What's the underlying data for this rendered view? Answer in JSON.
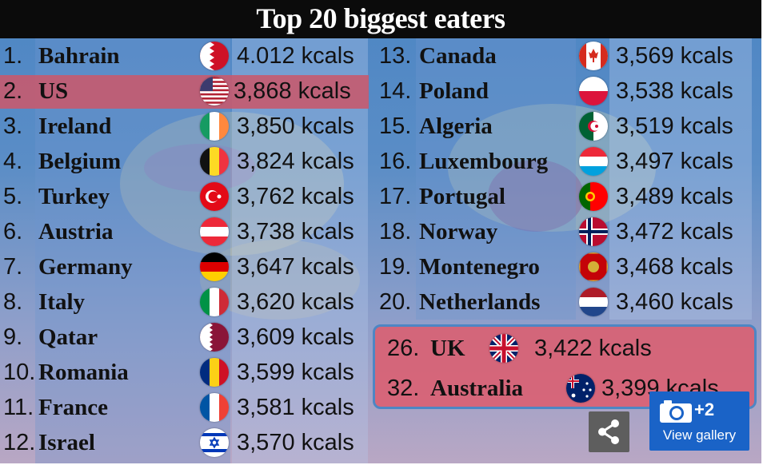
{
  "title": "Top 20 biggest eaters",
  "left_column": [
    {
      "rank": "1.",
      "country": "Bahrain",
      "flag": "bahrain-flag",
      "value": "4.012 kcals"
    },
    {
      "rank": "2.",
      "country": "US",
      "flag": "us-flag",
      "value": "3,868 kcals"
    },
    {
      "rank": "3.",
      "country": "Ireland",
      "flag": "ireland-flag",
      "value": "3,850 kcals"
    },
    {
      "rank": "4.",
      "country": "Belgium",
      "flag": "belgium-flag",
      "value": "3,824 kcals"
    },
    {
      "rank": "5.",
      "country": "Turkey",
      "flag": "turkey-flag",
      "value": "3,762 kcals"
    },
    {
      "rank": "6.",
      "country": "Austria",
      "flag": "austria-flag",
      "value": "3,738 kcals"
    },
    {
      "rank": "7.",
      "country": "Germany",
      "flag": "germany-flag",
      "value": "3,647 kcals"
    },
    {
      "rank": "8.",
      "country": "Italy",
      "flag": "italy-flag",
      "value": "3,620 kcals"
    },
    {
      "rank": "9.",
      "country": "Qatar",
      "flag": "qatar-flag",
      "value": "3,609 kcals"
    },
    {
      "rank": "10.",
      "country": "Romania",
      "flag": "romania-flag",
      "value": "3,599 kcals"
    },
    {
      "rank": "11.",
      "country": "France",
      "flag": "france-flag",
      "value": "3,581 kcals"
    },
    {
      "rank": "12.",
      "country": "Israel",
      "flag": "israel-flag",
      "value": "3,570 kcals"
    }
  ],
  "right_column": [
    {
      "rank": "13.",
      "country": "Canada",
      "flag": "canada-flag",
      "value": "3,569 kcals"
    },
    {
      "rank": "14.",
      "country": "Poland",
      "flag": "poland-flag",
      "value": "3,538 kcals"
    },
    {
      "rank": "15.",
      "country": "Algeria",
      "flag": "algeria-flag",
      "value": "3,519 kcals"
    },
    {
      "rank": "16.",
      "country": "Luxembourg",
      "flag": "luxembourg-flag",
      "value": "3,497 kcals"
    },
    {
      "rank": "17.",
      "country": "Portugal",
      "flag": "portugal-flag",
      "value": "3,489 kcals"
    },
    {
      "rank": "18.",
      "country": "Norway",
      "flag": "norway-flag",
      "value": "3,472 kcals"
    },
    {
      "rank": "19.",
      "country": "Montenegro",
      "flag": "montenegro-flag",
      "value": "3,468 kcals"
    },
    {
      "rank": "20.",
      "country": "Netherlands",
      "flag": "netherlands-flag",
      "value": "3,460 kcals"
    }
  ],
  "highlight_box": [
    {
      "rank": "26.",
      "country": "UK",
      "flag": "uk-flag",
      "value": "3,422 kcals"
    },
    {
      "rank": "32.",
      "country": "Australia",
      "flag": "australia-flag",
      "value": "3,399 kcals"
    }
  ],
  "controls": {
    "share_icon": "share-icon",
    "gallery_icon": "camera-icon",
    "gallery_count": "+2",
    "gallery_label": "View gallery"
  },
  "colors": {
    "title_bar": "#0b0b0b",
    "us_highlight": "#c75a6e",
    "uk_box": "#de5c6c",
    "gallery_button": "#1a63c7"
  }
}
